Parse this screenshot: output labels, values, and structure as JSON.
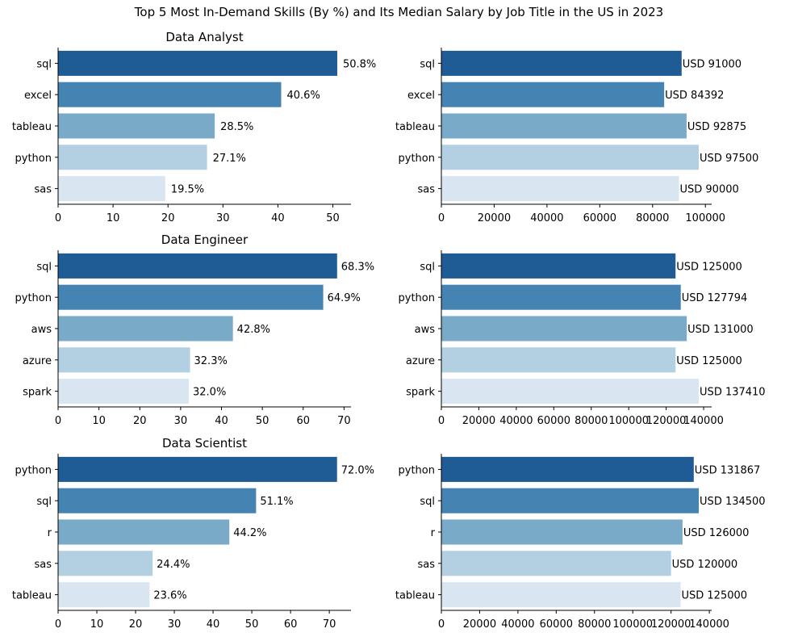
{
  "figure_title": "Top 5 Most In-Demand Skills (By %) and Its Median Salary by Job Title in the US in 2023",
  "palette": [
    "#1f5b94",
    "#4583b2",
    "#79aac8",
    "#b3cfe2",
    "#d9e6f2"
  ],
  "chart_data": [
    {
      "type": "bar",
      "orientation": "horizontal",
      "title": "Data Analyst",
      "categories": [
        "sql",
        "excel",
        "tableau",
        "python",
        "sas"
      ],
      "values": [
        50.8,
        40.6,
        28.5,
        27.1,
        19.5
      ],
      "value_labels": [
        "50.8%",
        "40.6%",
        "28.5%",
        "27.1%",
        "19.5%"
      ],
      "xlim": [
        0,
        53.3
      ],
      "xticks": [
        0,
        10,
        20,
        30,
        40,
        50
      ],
      "xlabel": "",
      "ylabel": "",
      "grid": false
    },
    {
      "type": "bar",
      "orientation": "horizontal",
      "title": "",
      "categories": [
        "sql",
        "excel",
        "tableau",
        "python",
        "sas"
      ],
      "values": [
        91000,
        84392,
        92875,
        97500,
        90000
      ],
      "value_labels": [
        "USD 91000",
        "USD 84392",
        "USD 92875",
        "USD 97500",
        "USD 90000"
      ],
      "xlim": [
        0,
        102375
      ],
      "xticks": [
        0,
        20000,
        40000,
        60000,
        80000,
        100000
      ],
      "xlabel": "",
      "ylabel": "",
      "grid": false
    },
    {
      "type": "bar",
      "orientation": "horizontal",
      "title": "Data Engineer",
      "categories": [
        "sql",
        "python",
        "aws",
        "azure",
        "spark"
      ],
      "values": [
        68.3,
        64.9,
        42.8,
        32.3,
        32.0
      ],
      "value_labels": [
        "68.3%",
        "64.9%",
        "42.8%",
        "32.3%",
        "32.0%"
      ],
      "xlim": [
        0,
        71.7
      ],
      "xticks": [
        0,
        10,
        20,
        30,
        40,
        50,
        60,
        70
      ],
      "xlabel": "",
      "ylabel": "",
      "grid": false
    },
    {
      "type": "bar",
      "orientation": "horizontal",
      "title": "",
      "categories": [
        "sql",
        "python",
        "aws",
        "azure",
        "spark"
      ],
      "values": [
        125000,
        127794,
        131000,
        125000,
        137410
      ],
      "value_labels": [
        "USD 125000",
        "USD 127794",
        "USD 131000",
        "USD 125000",
        "USD 137410"
      ],
      "xlim": [
        0,
        144280
      ],
      "xticks": [
        0,
        20000,
        40000,
        60000,
        80000,
        100000,
        120000,
        140000
      ],
      "xlabel": "",
      "ylabel": "",
      "grid": false
    },
    {
      "type": "bar",
      "orientation": "horizontal",
      "title": "Data Scientist",
      "categories": [
        "python",
        "sql",
        "r",
        "sas",
        "tableau"
      ],
      "values": [
        72.0,
        51.1,
        44.2,
        24.4,
        23.6
      ],
      "value_labels": [
        "72.0%",
        "51.1%",
        "44.2%",
        "24.4%",
        "23.6%"
      ],
      "xlim": [
        0,
        75.6
      ],
      "xticks": [
        0,
        10,
        20,
        30,
        40,
        50,
        60,
        70
      ],
      "xlabel": "",
      "ylabel": "",
      "grid": false
    },
    {
      "type": "bar",
      "orientation": "horizontal",
      "title": "",
      "categories": [
        "python",
        "sql",
        "r",
        "sas",
        "tableau"
      ],
      "values": [
        131867,
        134500,
        126000,
        120000,
        125000
      ],
      "value_labels": [
        "USD 131867",
        "USD 134500",
        "USD 126000",
        "USD 120000",
        "USD 125000"
      ],
      "xlim": [
        0,
        141225
      ],
      "xticks": [
        0,
        20000,
        40000,
        60000,
        80000,
        100000,
        120000,
        140000
      ],
      "xlabel": "",
      "ylabel": "",
      "grid": false
    }
  ]
}
